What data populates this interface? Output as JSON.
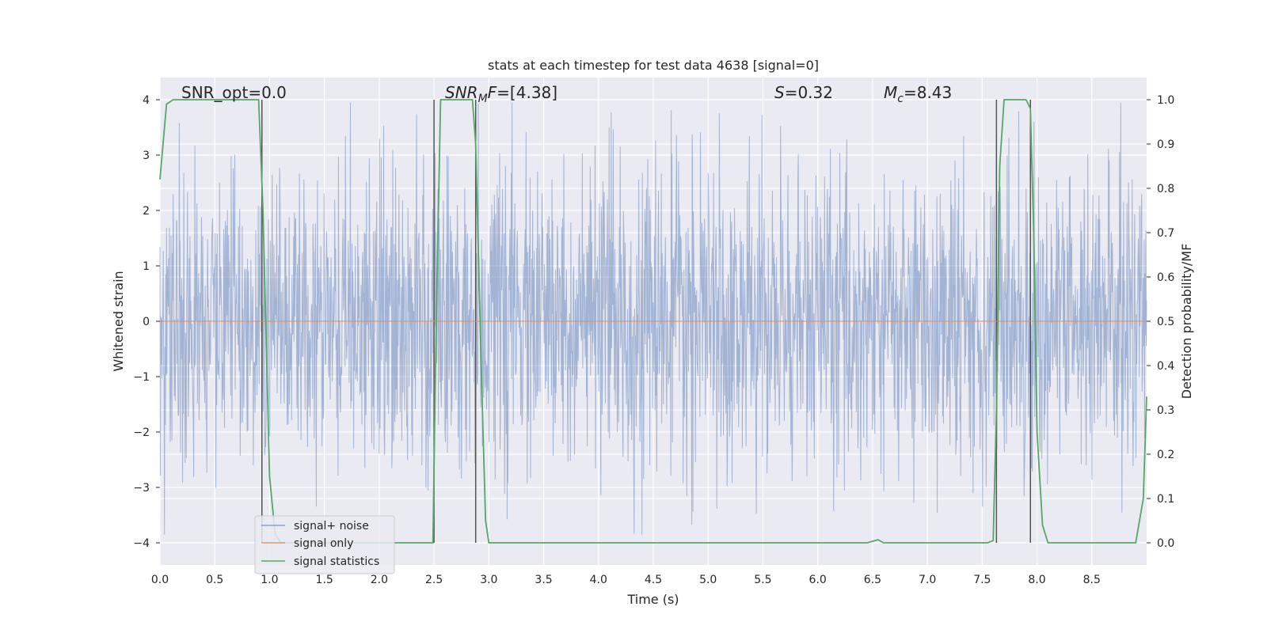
{
  "chart_data": {
    "type": "line",
    "title": "stats at each timestep for test data 4638 [signal=0]",
    "xlabel": "Time (s)",
    "ylabel_left": "Whitened strain",
    "ylabel_right": "Detection probability/MF",
    "xlim": [
      0.0,
      9.0
    ],
    "ylim_left": [
      -4.4,
      4.4
    ],
    "ylim_right": [
      -0.05,
      1.05
    ],
    "x_ticks": [
      "0.0",
      "0.5",
      "1.0",
      "1.5",
      "2.0",
      "2.5",
      "3.0",
      "3.5",
      "4.0",
      "4.5",
      "5.0",
      "5.5",
      "6.0",
      "6.5",
      "7.0",
      "7.5",
      "8.0",
      "8.5"
    ],
    "y_left_ticks": [
      "−4",
      "−3",
      "−2",
      "−1",
      "0",
      "1",
      "2",
      "3",
      "4"
    ],
    "y_right_ticks": [
      "0.0",
      "0.1",
      "0.2",
      "0.3",
      "0.4",
      "0.5",
      "0.6",
      "0.7",
      "0.8",
      "0.9",
      "1.0"
    ],
    "grid": true,
    "legend_position": "lower-left",
    "annotations": {
      "snr_opt": "SNR_opt=0.0",
      "snr_mf": "=[4.38]",
      "s": "=0.32",
      "mc": "=8.43"
    },
    "series": [
      {
        "name": "signal+ noise",
        "color": "#4c72b0",
        "axis": "left",
        "description_values": "whitened noise, approx ±1.6 std band, peaks to ±4"
      },
      {
        "name": "signal only",
        "color": "#dd8452",
        "axis": "left",
        "values_constant": 0.0
      },
      {
        "name": "signal statistics",
        "color": "#55a868",
        "axis": "right",
        "x": [
          0.0,
          0.06,
          0.12,
          0.5,
          0.9,
          0.94,
          1.0,
          1.05,
          1.1,
          2.3,
          2.49,
          2.52,
          2.56,
          2.6,
          2.85,
          2.88,
          2.93,
          2.97,
          3.0,
          3.05,
          6.45,
          6.55,
          6.6,
          6.65,
          7.55,
          7.6,
          7.63,
          7.66,
          7.7,
          7.75,
          7.9,
          7.94,
          7.97,
          8.0,
          8.05,
          8.1,
          8.5,
          8.9,
          8.97,
          9.0
        ],
        "values": [
          0.82,
          0.99,
          1.0,
          1.0,
          1.0,
          0.75,
          0.15,
          0.02,
          0.0,
          0.0,
          0.0,
          0.5,
          1.0,
          1.0,
          1.0,
          0.9,
          0.4,
          0.05,
          0.0,
          0.0,
          0.0,
          0.007,
          0.0,
          0.0,
          0.0,
          0.005,
          0.3,
          0.85,
          1.0,
          1.0,
          1.0,
          0.98,
          0.7,
          0.25,
          0.04,
          0.0,
          0.0,
          0.0,
          0.1,
          0.33
        ]
      }
    ],
    "vertical_lines": [
      0.93,
      2.5,
      2.88,
      7.63,
      7.94
    ]
  }
}
